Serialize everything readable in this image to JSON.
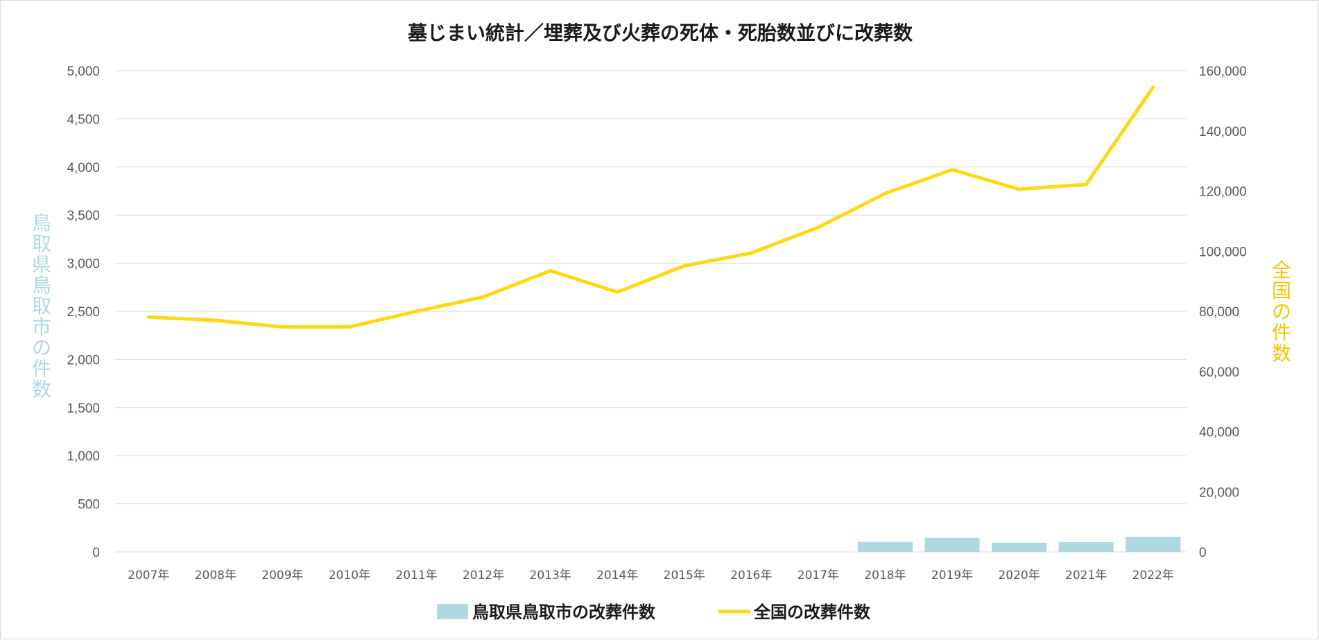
{
  "chart_data": {
    "type": "bar+line",
    "title": "墓じまい統計／埋葬及び火葬の死体・死胎数並びに改葬数",
    "categories": [
      "2007年",
      "2008年",
      "2009年",
      "2010年",
      "2011年",
      "2012年",
      "2013年",
      "2014年",
      "2015年",
      "2016年",
      "2017年",
      "2018年",
      "2019年",
      "2020年",
      "2021年",
      "2022年"
    ],
    "series": [
      {
        "name": "鳥取県鳥取市の改葬件数",
        "kind": "bar",
        "axis": "left",
        "color": "#b0d8e3",
        "values": [
          null,
          null,
          null,
          null,
          null,
          null,
          null,
          null,
          null,
          null,
          null,
          104,
          146,
          95,
          101,
          158
        ]
      },
      {
        "name": "全国の改葬件数",
        "kind": "line",
        "axis": "right",
        "color": "#ffd814",
        "values": [
          78100,
          77000,
          74800,
          74800,
          80000,
          84800,
          93500,
          86400,
          95100,
          99400,
          107900,
          119200,
          127100,
          120600,
          122200,
          154500
        ]
      }
    ],
    "y_left": {
      "label": "鳥取県鳥取市の件数",
      "ylim": [
        0,
        5000
      ],
      "ticks": [
        "5,000",
        "4,500",
        "4,000",
        "3,500",
        "3,000",
        "2,500",
        "2,000",
        "1,500",
        "1,000",
        "500",
        "0"
      ]
    },
    "y_right": {
      "label": "全国の件数",
      "ylim": [
        0,
        160000
      ],
      "ticks": [
        "160,000",
        "140,000",
        "120,000",
        "100,000",
        "80,000",
        "60,000",
        "40,000",
        "20,000",
        "0"
      ]
    },
    "grid": true,
    "legend": "bottom",
    "colors": {
      "left_axis_title": "#add8e6",
      "right_axis_title": "#f5c400"
    }
  }
}
